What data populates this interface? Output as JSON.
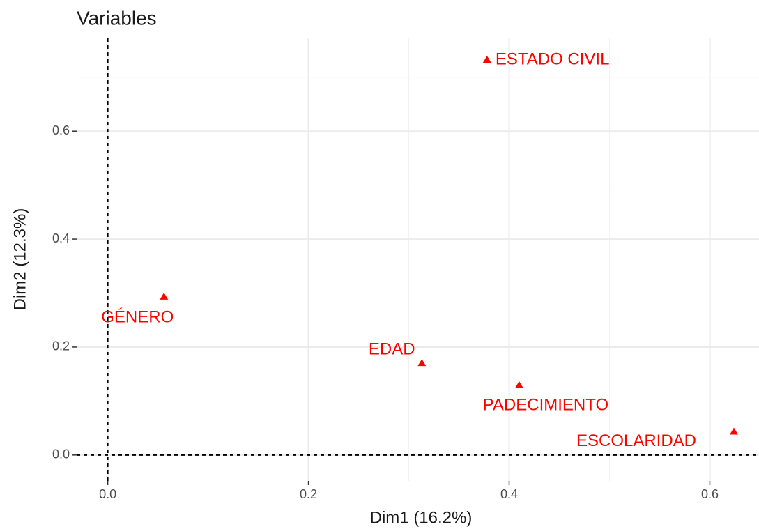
{
  "chart_data": {
    "type": "scatter",
    "title": "Variables",
    "x_label": "Dim1 (16.2%)",
    "y_label": "Dim2 (12.3%)",
    "labels": [
      "ESTADO CIVIL",
      "GÉNERO",
      "EDAD",
      "PADECIMIENTO",
      "ESCOLARIDAD"
    ],
    "x": [
      0.378,
      0.056,
      0.313,
      0.41,
      0.624
    ],
    "values": [
      0.732,
      0.293,
      0.17,
      0.129,
      0.043
    ],
    "color": "#ff0000",
    "xlim": [
      -0.031,
      0.649
    ],
    "ylim": [
      -0.048,
      0.772
    ],
    "xticks": [
      {
        "value": 0,
        "label": "0.0"
      },
      0.2,
      0.4,
      0.6
    ],
    "yticks": [
      {
        "value": 0,
        "label": "0.0"
      },
      0.2,
      0.4,
      0.6
    ],
    "grid": true
  }
}
